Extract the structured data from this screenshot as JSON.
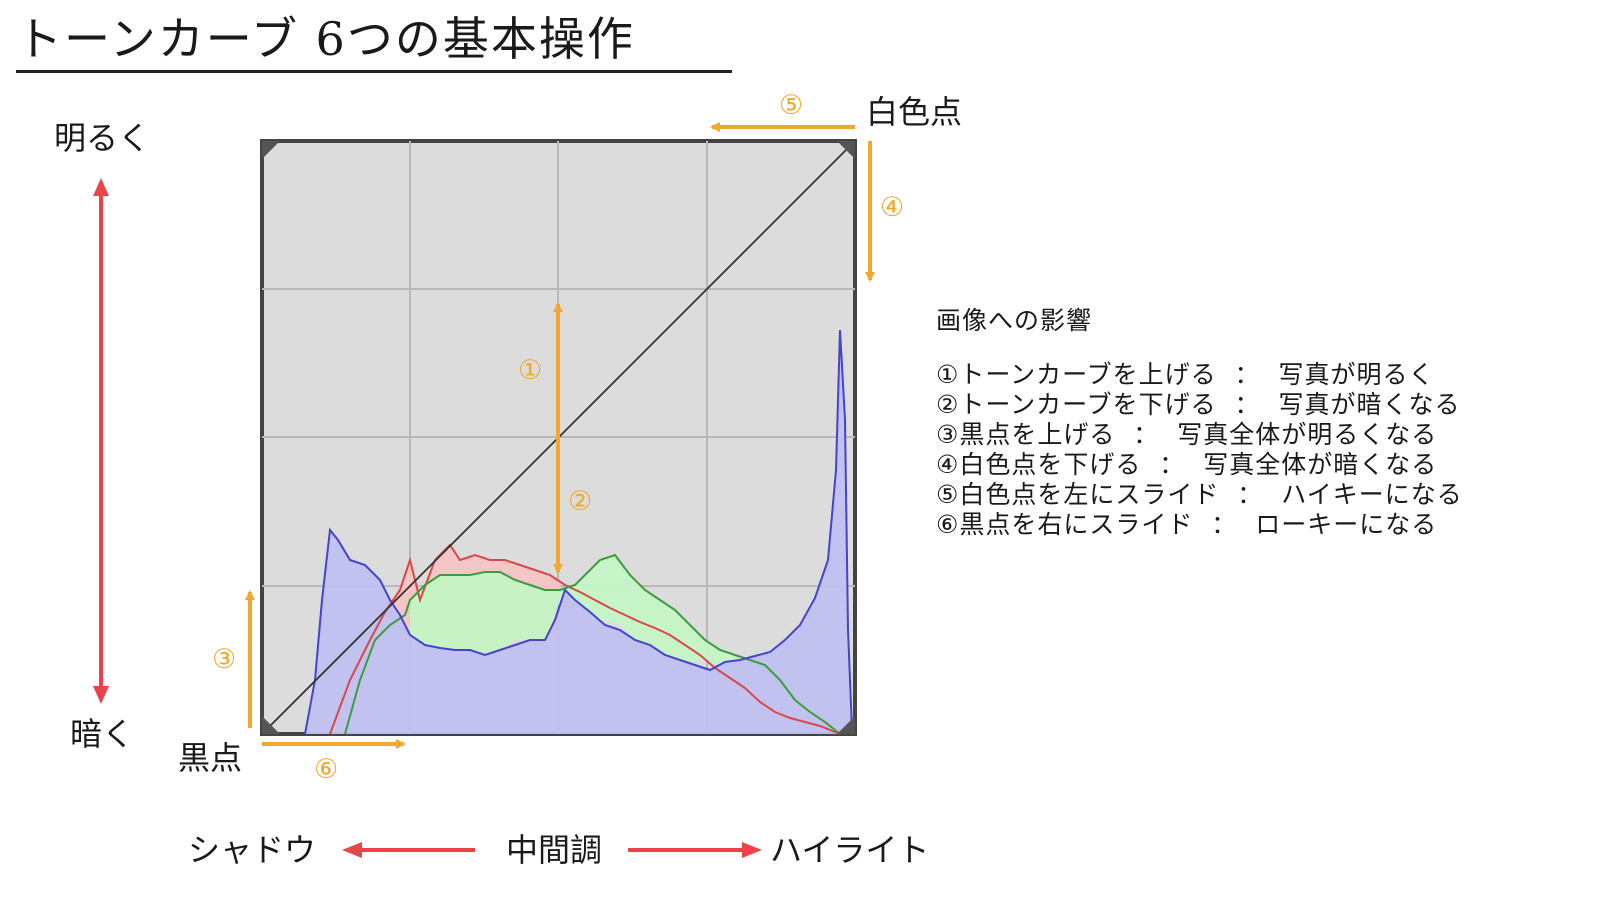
{
  "title": "トーンカーブ 6つの基本操作",
  "labels": {
    "brighter": "明るく",
    "darker": "暗く",
    "white_point": "白色点",
    "black_point": "黒点",
    "shadow": "シャドウ",
    "midtone": "中間調",
    "highlight": "ハイライト"
  },
  "markers": [
    "①",
    "②",
    "③",
    "④",
    "⑤",
    "⑥"
  ],
  "legend": {
    "heading": "画像への影響",
    "items": [
      "①トーンカーブを上げる  ：  写真が明るく",
      "②トーンカーブを下げる  ：  写真が暗くなる",
      "③黒点を上げる  ：  写真全体が明るくなる",
      "④白色点を下げる  ：  写真全体が暗くなる",
      "⑤白色点を左にスライド  ：  ハイキーになる",
      "⑥黒点を右にスライド  ：  ローキーになる"
    ]
  },
  "colors": {
    "orange_arrow": "#f0a830",
    "red_arrow": "#e8444a",
    "panel_bg": "#dcdcdc",
    "grid": "#b8b8b8",
    "hist_blue": "#4444cc",
    "hist_blue_fill": "#c0c0f0",
    "hist_red": "#d84848",
    "hist_red_fill": "#f4c4c4",
    "hist_green": "#3c9c3c",
    "hist_green_fill": "#c4f4c4"
  }
}
